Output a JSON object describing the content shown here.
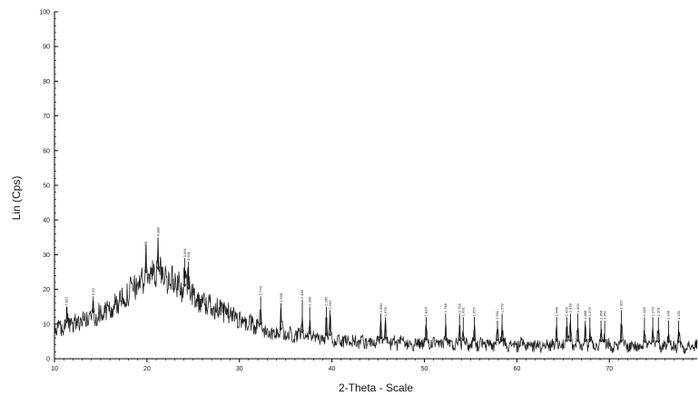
{
  "chart_data": {
    "type": "line",
    "xlabel": "2-Theta - Scale",
    "ylabel": "Lin (Cps)",
    "xlim": [
      10,
      79.5
    ],
    "ylim": [
      0,
      100
    ],
    "x_ticks": [
      10,
      20,
      30,
      40,
      50,
      60,
      70
    ],
    "y_ticks": [
      0,
      10,
      20,
      30,
      40,
      50,
      60,
      70,
      80,
      90,
      100
    ],
    "grid": false,
    "series_color": "#222222",
    "baseline_profile": [
      {
        "x": 10.0,
        "y": 8
      },
      {
        "x": 12.0,
        "y": 10
      },
      {
        "x": 14.0,
        "y": 12
      },
      {
        "x": 16.0,
        "y": 14
      },
      {
        "x": 18.0,
        "y": 19
      },
      {
        "x": 20.0,
        "y": 24
      },
      {
        "x": 21.5,
        "y": 25
      },
      {
        "x": 23.0,
        "y": 22
      },
      {
        "x": 25.0,
        "y": 18
      },
      {
        "x": 27.0,
        "y": 15
      },
      {
        "x": 29.0,
        "y": 13
      },
      {
        "x": 31.0,
        "y": 10
      },
      {
        "x": 33.0,
        "y": 8
      },
      {
        "x": 35.0,
        "y": 7
      },
      {
        "x": 38.0,
        "y": 6
      },
      {
        "x": 42.0,
        "y": 5
      },
      {
        "x": 50.0,
        "y": 4.3
      },
      {
        "x": 60.0,
        "y": 4
      },
      {
        "x": 70.0,
        "y": 3.8
      },
      {
        "x": 79.5,
        "y": 3.5
      }
    ],
    "peaks": [
      {
        "x": 11.3,
        "y": 15,
        "label": "7.821"
      },
      {
        "x": 14.2,
        "y": 18,
        "label": "6.23"
      },
      {
        "x": 19.9,
        "y": 31,
        "label": "4.455"
      },
      {
        "x": 21.2,
        "y": 35,
        "label": "4.188"
      },
      {
        "x": 24.1,
        "y": 29,
        "label": "3.691"
      },
      {
        "x": 24.5,
        "y": 28,
        "label": "3.631"
      },
      {
        "x": 32.3,
        "y": 18,
        "label": "2.770"
      },
      {
        "x": 34.5,
        "y": 16,
        "label": "2.598"
      },
      {
        "x": 36.8,
        "y": 17,
        "label": "2.440"
      },
      {
        "x": 37.6,
        "y": 15,
        "label": "2.390"
      },
      {
        "x": 39.4,
        "y": 15,
        "label": "2.285"
      },
      {
        "x": 39.8,
        "y": 14,
        "label": "2.263"
      },
      {
        "x": 45.3,
        "y": 13,
        "label": "2.000"
      },
      {
        "x": 45.8,
        "y": 12,
        "label": "1.979"
      },
      {
        "x": 50.2,
        "y": 12,
        "label": "1.816"
      },
      {
        "x": 52.3,
        "y": 13,
        "label": "1.748"
      },
      {
        "x": 53.8,
        "y": 13,
        "label": "1.703"
      },
      {
        "x": 54.2,
        "y": 12,
        "label": "1.691"
      },
      {
        "x": 55.4,
        "y": 12,
        "label": "1.657"
      },
      {
        "x": 57.9,
        "y": 11,
        "label": "1.591"
      },
      {
        "x": 58.4,
        "y": 13,
        "label": "1.579"
      },
      {
        "x": 64.3,
        "y": 12,
        "label": "1.448"
      },
      {
        "x": 65.4,
        "y": 12,
        "label": "1.426"
      },
      {
        "x": 65.8,
        "y": 13,
        "label": "1.418"
      },
      {
        "x": 66.6,
        "y": 13,
        "label": "1.403"
      },
      {
        "x": 67.4,
        "y": 11,
        "label": "1.388"
      },
      {
        "x": 67.9,
        "y": 12,
        "label": "1.379"
      },
      {
        "x": 69.1,
        "y": 11,
        "label": "1.358"
      },
      {
        "x": 69.5,
        "y": 11,
        "label": "1.351"
      },
      {
        "x": 71.3,
        "y": 14,
        "label": "1.322"
      },
      {
        "x": 73.8,
        "y": 12,
        "label": "1.283"
      },
      {
        "x": 74.7,
        "y": 12,
        "label": "1.270"
      },
      {
        "x": 75.3,
        "y": 12,
        "label": "1.261"
      },
      {
        "x": 76.4,
        "y": 11,
        "label": "1.246"
      },
      {
        "x": 77.5,
        "y": 11,
        "label": "1.231"
      }
    ]
  }
}
